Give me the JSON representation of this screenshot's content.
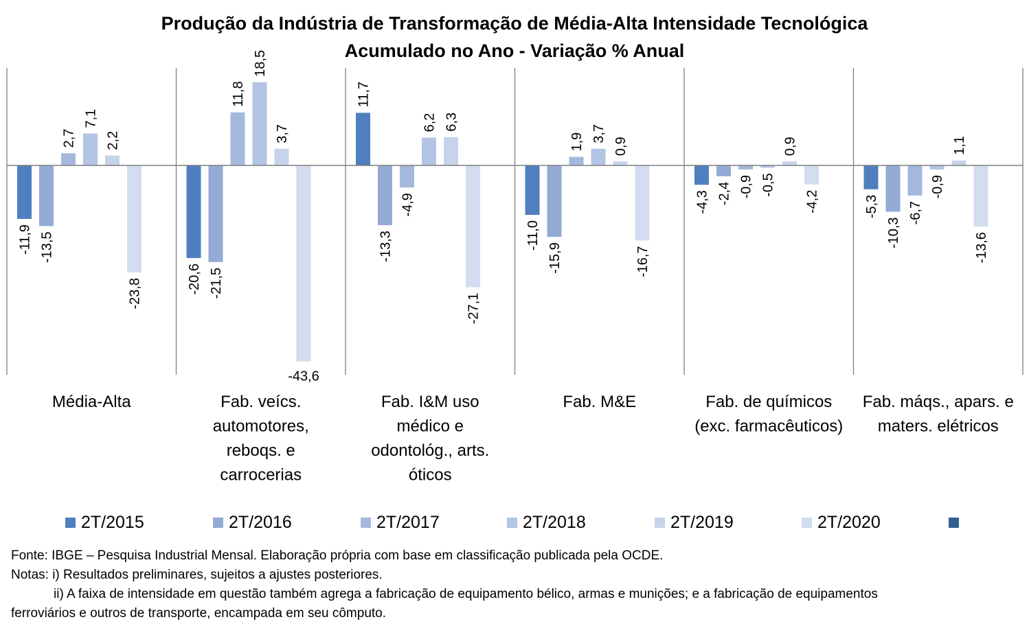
{
  "chart_data": {
    "type": "bar",
    "title": "Produção da Indústria de Transformação de Média-Alta Intensidade Tecnológica",
    "subtitle": "Acumulado no Ano - Variação % Anual",
    "xlabel": "",
    "ylabel": "",
    "ylim": [
      -43.6,
      18.5
    ],
    "grid": false,
    "legend_position": "bottom",
    "categories": [
      [
        "Média-Alta"
      ],
      [
        "Fab. veícs.",
        "automotores,",
        "reboqs. e",
        "carrocerias"
      ],
      [
        "Fab. I&M uso",
        "médico e",
        "odontológ., arts.",
        "óticos"
      ],
      [
        "Fab. M&E"
      ],
      [
        "Fab. de químicos",
        "(exc. farmacêuticos)"
      ],
      [
        "Fab. máqs., apars. e",
        "maters. elétricos"
      ]
    ],
    "series": [
      {
        "name": "2T/2015",
        "color": "#4f7fbf",
        "values": [
          -11.9,
          -20.6,
          11.7,
          -11.0,
          -4.3,
          -5.3
        ],
        "labels": [
          "-11,9",
          "-20,6",
          "11,7",
          "-11,0",
          "-4,3",
          "-5,3"
        ]
      },
      {
        "name": "2T/2016",
        "color": "#94abd6",
        "values": [
          -13.5,
          -21.5,
          -13.3,
          -15.9,
          -2.4,
          -10.3
        ],
        "labels": [
          "-13,5",
          "-21,5",
          "-13,3",
          "-15,9",
          "-2,4",
          "-10,3"
        ]
      },
      {
        "name": "2T/2017",
        "color": "#a4b8dd",
        "values": [
          2.7,
          11.8,
          -4.9,
          1.9,
          -0.9,
          -6.7
        ],
        "labels": [
          "2,7",
          "11,8",
          "-4,9",
          "1,9",
          "-0,9",
          "-6,7"
        ]
      },
      {
        "name": "2T/2018",
        "color": "#b3c4e4",
        "values": [
          7.1,
          18.5,
          6.2,
          3.7,
          -0.5,
          -0.9
        ],
        "labels": [
          "7,1",
          "18,5",
          "6,2",
          "3,7",
          "-0,5",
          "-0,9"
        ]
      },
      {
        "name": "2T/2019",
        "color": "#c7d3ea",
        "values": [
          2.2,
          3.7,
          6.3,
          0.9,
          0.9,
          1.1
        ],
        "labels": [
          "2,2",
          "3,7",
          "6,3",
          "0,9",
          "0,9",
          "1,1"
        ]
      },
      {
        "name": "2T/2020",
        "color": "#d3ddef",
        "values": [
          -23.8,
          -43.6,
          -27.1,
          -16.7,
          -4.2,
          -13.6
        ],
        "labels": [
          "-23,8",
          "-43,6",
          "-27,1",
          "-16,7",
          "-4,2",
          "-13,6"
        ]
      }
    ],
    "extra_legend_swatch_color": "#335f8f"
  },
  "notes": {
    "source": "Fonte: IBGE – Pesquisa Industrial Mensal. Elaboração própria com base em classificação publicada pela OCDE.",
    "note1": "Notas: i) Resultados preliminares, sujeitos a ajustes posteriores.",
    "note2": "ii) A faixa de intensidade em questão também agrega a fabricação de equipamento bélico, armas e munições; e a fabricação de equipamentos",
    "note3": "ferroviários e outros de transporte, encampada em seu cômputo."
  }
}
